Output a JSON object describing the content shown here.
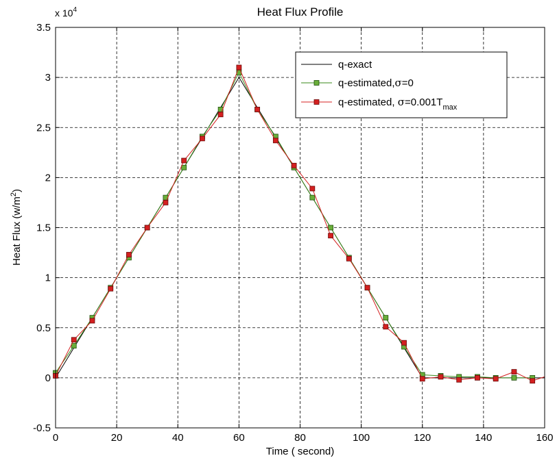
{
  "chart_data": {
    "type": "line",
    "title": "Heat Flux Profile",
    "xlabel": "Time ( second)",
    "ylabel_main": "Heat Flux (w/m",
    "ylabel_sup": "2",
    "ylabel_close": ")",
    "exponent_base": "x 10",
    "exponent_power": "4",
    "xlim": [
      0,
      160
    ],
    "ylim": [
      -0.5,
      3.5
    ],
    "x_ticks": [
      0,
      20,
      40,
      60,
      80,
      100,
      120,
      140,
      160
    ],
    "y_ticks": [
      -0.5,
      0,
      0.5,
      1,
      1.5,
      2,
      2.5,
      3,
      3.5
    ],
    "x_tick_labels": [
      "0",
      "20",
      "40",
      "60",
      "80",
      "100",
      "120",
      "140",
      "160"
    ],
    "y_tick_labels": [
      "-0.5",
      "0",
      "0.5",
      "1",
      "1.5",
      "2",
      "2.5",
      "3",
      "3.5"
    ],
    "grid": true,
    "legend_position": "top-right",
    "legend": {
      "exact": "q-exact",
      "est0_main": "q-estimated,",
      "est0_sigma": "σ",
      "est0_rest": "=0",
      "est1_main": "q-estimated, ",
      "est1_sigma": "σ",
      "est1_rest": "=0.001T",
      "est1_sub": "max"
    },
    "series": [
      {
        "key": "exact",
        "color": "#000000",
        "marker": "none",
        "x": [
          0,
          60,
          120,
          160
        ],
        "y": [
          0,
          3.0,
          0,
          0
        ]
      },
      {
        "key": "est0",
        "color": "#3a8a1a",
        "marker_fill": "#6aae3a",
        "marker": "square",
        "x": [
          0,
          6,
          12,
          18,
          24,
          30,
          36,
          42,
          48,
          54,
          60,
          66,
          72,
          78,
          84,
          90,
          96,
          102,
          108,
          114,
          120,
          126,
          132,
          138,
          144,
          150,
          156
        ],
        "y": [
          0.05,
          0.32,
          0.6,
          0.9,
          1.2,
          1.5,
          1.8,
          2.1,
          2.41,
          2.68,
          3.05,
          2.68,
          2.41,
          2.1,
          1.8,
          1.5,
          1.2,
          0.9,
          0.6,
          0.31,
          0.03,
          0.02,
          0.01,
          0.01,
          0.0,
          0.0,
          0.0
        ]
      },
      {
        "key": "est1",
        "color": "#d42020",
        "marker_fill": "#d42020",
        "marker": "square",
        "x": [
          0,
          6,
          12,
          18,
          24,
          30,
          36,
          42,
          48,
          54,
          60,
          66,
          72,
          78,
          84,
          90,
          96,
          102,
          108,
          114,
          120,
          126,
          132,
          138,
          144,
          150,
          156,
          160
        ],
        "y": [
          0.02,
          0.38,
          0.57,
          0.89,
          1.23,
          1.5,
          1.75,
          2.17,
          2.39,
          2.63,
          3.1,
          2.68,
          2.37,
          2.12,
          1.89,
          1.42,
          1.19,
          0.9,
          0.51,
          0.35,
          -0.01,
          0.01,
          -0.02,
          0.0,
          -0.01,
          0.06,
          -0.03,
          0.01
        ]
      }
    ]
  }
}
